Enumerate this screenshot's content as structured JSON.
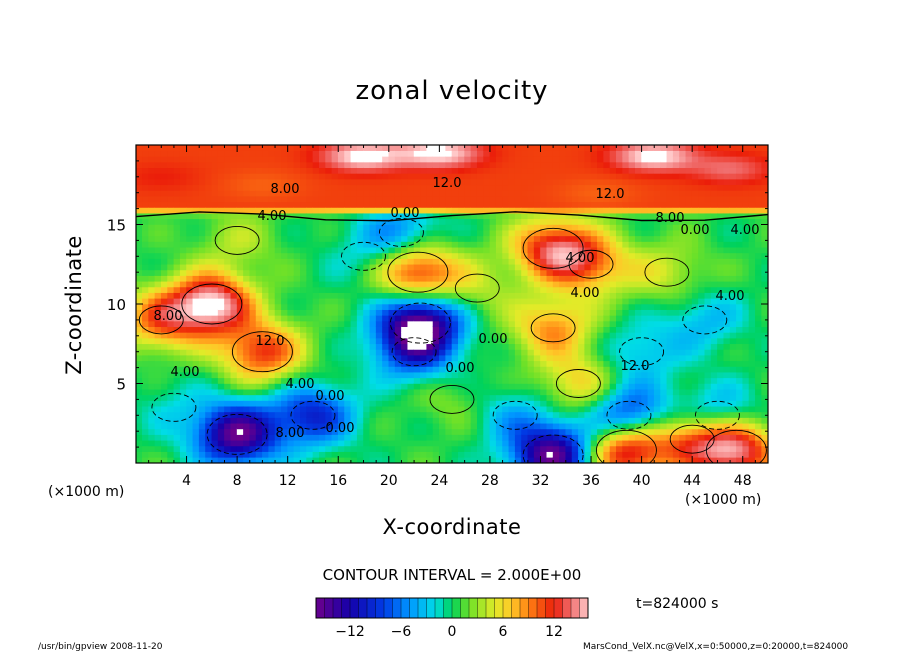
{
  "chart_data": {
    "type": "heatmap",
    "title": "zonal velocity",
    "xlabel": "X-coordinate",
    "ylabel": "Z-coordinate",
    "xunit_left": "(×1000 m)",
    "xunit_right": "(×1000 m)",
    "xlim": [
      0,
      50
    ],
    "ylim": [
      0,
      20
    ],
    "x_ticks": [
      "4",
      "8",
      "12",
      "16",
      "20",
      "24",
      "28",
      "32",
      "36",
      "40",
      "44",
      "48"
    ],
    "y_ticks": [
      "5",
      "10",
      "15"
    ],
    "contour_interval": "CONTOUR INTERVAL = 2.000E+00",
    "time": "t=824000 s",
    "colorbar": {
      "range": [
        -16,
        16
      ],
      "ticks": [
        "−12",
        "−6",
        "0",
        "6",
        "12"
      ]
    },
    "contour_labels": [
      "8.00",
      "12.0",
      "4.00",
      "0.00",
      "12.0",
      "8.00",
      "0.00",
      "4.00",
      "4.00",
      "4.00",
      "8.00",
      "12.0",
      "4.00",
      "0.00",
      "4.00",
      "0.00",
      "0.00",
      "12.0",
      "8.00",
      "0.00",
      "4.00"
    ],
    "features": [
      {
        "x": 6,
        "z": 10,
        "value": 16
      },
      {
        "x": 2,
        "z": 9,
        "value": 9
      },
      {
        "x": 10,
        "z": 7,
        "value": 11
      },
      {
        "x": 22.5,
        "z": 8.8,
        "value": -16
      },
      {
        "x": 22,
        "z": 7,
        "value": -8
      },
      {
        "x": 8,
        "z": 1.8,
        "value": -16
      },
      {
        "x": 14,
        "z": 3,
        "value": -10
      },
      {
        "x": 33,
        "z": 8.5,
        "value": 8
      },
      {
        "x": 35,
        "z": 5,
        "value": 6
      },
      {
        "x": 39,
        "z": 3,
        "value": -10
      },
      {
        "x": 40,
        "z": 7,
        "value": -4
      },
      {
        "x": 33,
        "z": 0.5,
        "value": -16
      },
      {
        "x": 38.8,
        "z": 0.8,
        "value": 14
      },
      {
        "x": 47.5,
        "z": 0.8,
        "value": 14
      },
      {
        "x": 44,
        "z": 1.5,
        "value": 9
      },
      {
        "x": 46,
        "z": 3,
        "value": -6
      },
      {
        "x": 30,
        "z": 3,
        "value": -4
      },
      {
        "x": 22.3,
        "z": 12,
        "value": 12
      },
      {
        "x": 33,
        "z": 13.5,
        "value": 12
      },
      {
        "x": 36,
        "z": 12.5,
        "value": 8
      },
      {
        "x": 18,
        "z": 13,
        "value": -2
      },
      {
        "x": 21,
        "z": 14.5,
        "value": -6
      },
      {
        "x": 45,
        "z": 9,
        "value": -4
      },
      {
        "x": 27,
        "z": 11,
        "value": 3
      },
      {
        "x": 3,
        "z": 3.5,
        "value": -2
      },
      {
        "x": 25,
        "z": 4,
        "value": 2
      },
      {
        "x": 8,
        "z": 14,
        "value": 3
      },
      {
        "x": 42,
        "z": 12,
        "value": 4
      }
    ],
    "top_band": {
      "z_from": 15.5,
      "z_to": 20,
      "base_value": 11
    },
    "top_features": [
      {
        "x": 18,
        "z": 19.3,
        "value": 17
      },
      {
        "x": 24,
        "z": 19.5,
        "value": 17
      },
      {
        "x": 41,
        "z": 19.3,
        "value": 17
      },
      {
        "x": 47,
        "z": 18.5,
        "value": 14
      },
      {
        "x": 10,
        "z": 17.5,
        "value": 10
      },
      {
        "x": 36.5,
        "z": 17,
        "value": 10
      },
      {
        "x": 2,
        "z": 18,
        "value": 12
      }
    ]
  },
  "footer": {
    "left": "/usr/bin/gpview   2008-11-20",
    "right": "MarsCond_VelX.nc@VelX,x=0:50000,z=0:20000,t=824000"
  }
}
